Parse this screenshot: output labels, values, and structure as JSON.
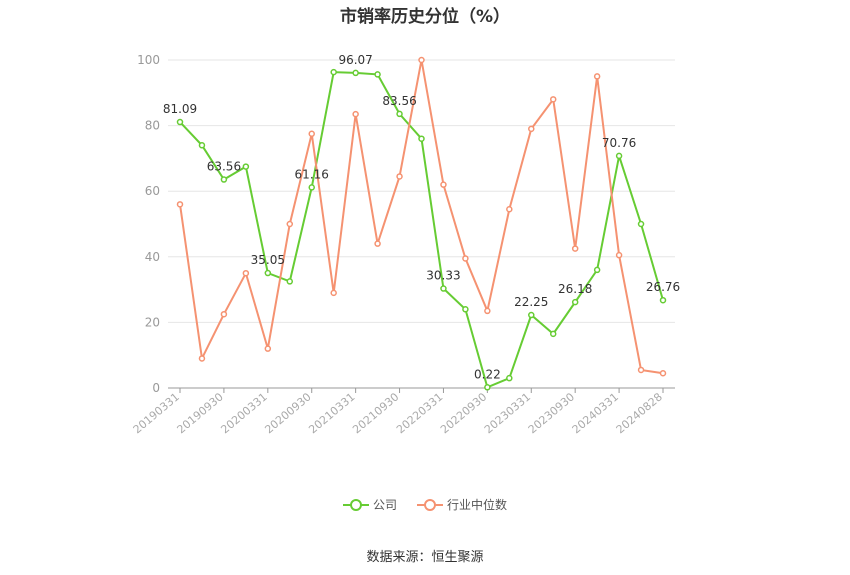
{
  "chart_data": {
    "type": "line",
    "title": "市销率历史分位（%）",
    "x_tick_labels": [
      "20190331",
      "20190930",
      "20200331",
      "20200930",
      "20210331",
      "20210930",
      "20220331",
      "20220930",
      "20230331",
      "20230930",
      "20240331",
      "20240828"
    ],
    "y_ticks": [
      "0",
      "20",
      "40",
      "60",
      "80",
      "100"
    ],
    "ylim": [
      0,
      100
    ],
    "grid": true,
    "legend_position": "bottom",
    "series": [
      {
        "name": "公司",
        "color": "#66cc33",
        "values": [
          81.09,
          74,
          63.56,
          67.5,
          35.05,
          32.5,
          61.16,
          96.3,
          96.07,
          95.6,
          83.56,
          76,
          30.33,
          24,
          0.22,
          3,
          22.25,
          16.5,
          26.18,
          36,
          70.76,
          50,
          26.76
        ],
        "labels": [
          "81.09",
          "",
          "63.56",
          "",
          "35.05",
          "",
          "61.16",
          "",
          "96.07",
          "",
          "83.56",
          "",
          "30.33",
          "",
          "0.22",
          "",
          "22.25",
          "",
          "26.18",
          "",
          "70.76",
          "",
          "26.76"
        ]
      },
      {
        "name": "行业中位数",
        "color": "#f59271",
        "values": [
          56,
          9,
          22.5,
          35,
          12,
          50,
          77.5,
          29,
          83.5,
          44,
          64.5,
          100,
          62,
          39.5,
          23.5,
          54.5,
          79,
          88,
          42.5,
          95,
          40.5,
          5.5,
          4.5
        ]
      }
    ]
  },
  "source_text": "数据来源：恒生聚源"
}
